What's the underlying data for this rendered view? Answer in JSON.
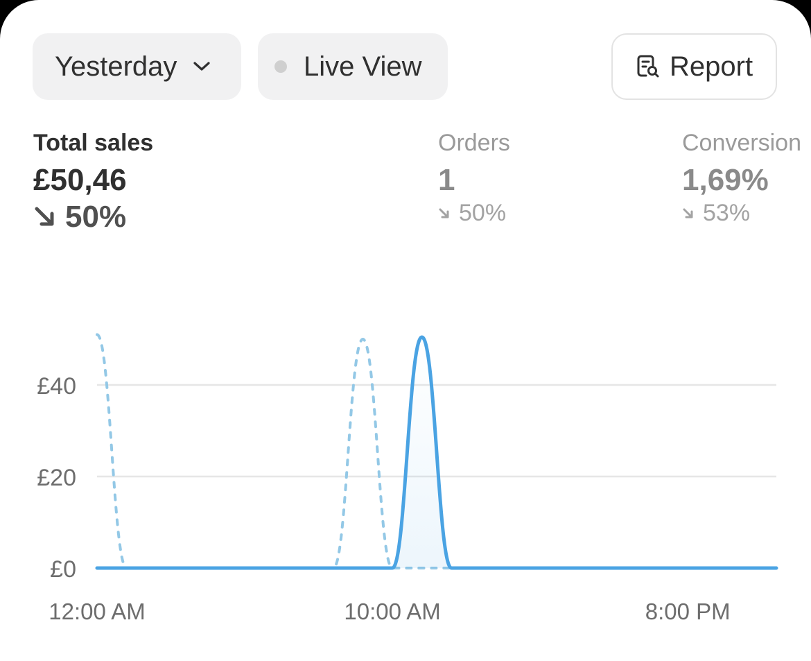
{
  "toolbar": {
    "period_label": "Yesterday",
    "live_label": "Live View",
    "report_label": "Report"
  },
  "metrics": [
    {
      "label": "Total sales",
      "value": "£50,46",
      "delta": "50%",
      "direction": "down"
    },
    {
      "label": "Orders",
      "value": "1",
      "delta": "50%",
      "direction": "down"
    },
    {
      "label": "Conversion",
      "value": "1,69%",
      "delta": "53%",
      "direction": "down"
    }
  ],
  "colors": {
    "current": "#4aa3e3",
    "comparison": "#93c8e6",
    "grid": "#e6e6e6",
    "axis_text": "#6d6d6d"
  },
  "chart_data": {
    "type": "line",
    "x_tick_labels": [
      "12:00 AM",
      "10:00 AM",
      "8:00 PM"
    ],
    "x_tick_hours": [
      0,
      10,
      20
    ],
    "x_range_hours": [
      0,
      23
    ],
    "ylim": [
      0,
      50.46
    ],
    "y_ticks": [
      0,
      20,
      40
    ],
    "y_tick_labels": [
      "£0",
      "£20",
      "£40"
    ],
    "grid": true,
    "series": [
      {
        "style": "solid",
        "fill": true,
        "x": [
          0,
          1,
          2,
          3,
          4,
          5,
          6,
          7,
          8,
          9,
          10,
          11,
          12,
          13,
          14,
          15,
          16,
          17,
          18,
          19,
          20,
          21,
          22,
          23
        ],
        "values": [
          0,
          0,
          0,
          0,
          0,
          0,
          0,
          0,
          0,
          0,
          0,
          50.46,
          0,
          0,
          0,
          0,
          0,
          0,
          0,
          0,
          0,
          0,
          0,
          0
        ]
      },
      {
        "style": "dashed",
        "fill": false,
        "x": [
          0,
          1,
          2,
          3,
          4,
          5,
          6,
          7,
          8,
          9,
          10,
          11,
          12,
          13,
          14,
          15,
          16,
          17,
          18,
          19,
          20,
          21,
          22,
          23
        ],
        "values": [
          51,
          0,
          0,
          0,
          0,
          0,
          0,
          0,
          0,
          50,
          0,
          0,
          0,
          0,
          0,
          0,
          0,
          0,
          0,
          0,
          0,
          0,
          0,
          0
        ]
      }
    ]
  }
}
